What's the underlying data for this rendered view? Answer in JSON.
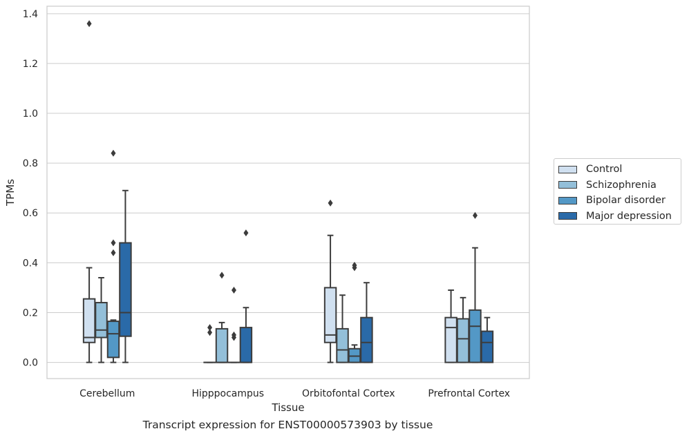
{
  "caption": "Transcript expression for ENST00000573903 by tissue",
  "chart_data": {
    "type": "box",
    "xlabel": "Tissue",
    "ylabel": "TPMs",
    "ylim": [
      -0.065,
      1.43
    ],
    "yticks": [
      0.0,
      0.2,
      0.4,
      0.6,
      0.8,
      1.0,
      1.2,
      1.4
    ],
    "ytick_labels": [
      "0.0",
      "0.2",
      "0.4",
      "0.6",
      "0.8",
      "1.0",
      "1.2",
      "1.4"
    ],
    "grid": "horizontal",
    "legend_position": "outside-right",
    "categories": [
      "Cerebellum",
      "Hipppocampus",
      "Orbitofontal Cortex",
      "Prefrontal Cortex"
    ],
    "series": [
      {
        "name": "Control",
        "color": "#d0e0f0",
        "boxes": [
          {
            "whislo": 0.0,
            "q1": 0.08,
            "med": 0.1,
            "q3": 0.255,
            "whishi": 0.38,
            "fliers": [
              1.36
            ]
          },
          {
            "whislo": 0.0,
            "q1": 0.0,
            "med": 0.0,
            "q3": 0.0,
            "whishi": 0.0,
            "fliers": [
              0.12,
              0.14
            ]
          },
          {
            "whislo": 0.0,
            "q1": 0.08,
            "med": 0.11,
            "q3": 0.3,
            "whishi": 0.51,
            "fliers": [
              0.64
            ]
          },
          {
            "whislo": 0.0,
            "q1": 0.0,
            "med": 0.14,
            "q3": 0.18,
            "whishi": 0.29,
            "fliers": []
          }
        ]
      },
      {
        "name": "Schizophrenia",
        "color": "#93bfd9",
        "boxes": [
          {
            "whislo": 0.0,
            "q1": 0.1,
            "med": 0.13,
            "q3": 0.24,
            "whishi": 0.34,
            "fliers": []
          },
          {
            "whislo": 0.0,
            "q1": 0.0,
            "med": 0.0,
            "q3": 0.135,
            "whishi": 0.16,
            "fliers": [
              0.35
            ]
          },
          {
            "whislo": 0.0,
            "q1": 0.0,
            "med": 0.05,
            "q3": 0.135,
            "whishi": 0.27,
            "fliers": []
          },
          {
            "whislo": 0.0,
            "q1": 0.0,
            "med": 0.095,
            "q3": 0.175,
            "whishi": 0.26,
            "fliers": []
          }
        ]
      },
      {
        "name": "Bipolar disorder",
        "color": "#5398c6",
        "boxes": [
          {
            "whislo": 0.0,
            "q1": 0.02,
            "med": 0.115,
            "q3": 0.165,
            "whishi": 0.17,
            "fliers": [
              0.44,
              0.48,
              0.84
            ]
          },
          {
            "whislo": 0.0,
            "q1": 0.0,
            "med": 0.0,
            "q3": 0.0,
            "whishi": 0.0,
            "fliers": [
              0.1,
              0.11,
              0.29
            ]
          },
          {
            "whislo": 0.0,
            "q1": 0.0,
            "med": 0.025,
            "q3": 0.055,
            "whishi": 0.07,
            "fliers": [
              0.38,
              0.39
            ]
          },
          {
            "whislo": 0.0,
            "q1": 0.0,
            "med": 0.145,
            "q3": 0.21,
            "whishi": 0.46,
            "fliers": [
              0.59
            ]
          }
        ]
      },
      {
        "name": "Major depression",
        "color": "#2a6aa8",
        "boxes": [
          {
            "whislo": 0.0,
            "q1": 0.105,
            "med": 0.2,
            "q3": 0.48,
            "whishi": 0.69,
            "fliers": []
          },
          {
            "whislo": 0.0,
            "q1": 0.0,
            "med": 0.0,
            "q3": 0.14,
            "whishi": 0.22,
            "fliers": [
              0.52
            ]
          },
          {
            "whislo": 0.0,
            "q1": 0.0,
            "med": 0.08,
            "q3": 0.18,
            "whishi": 0.32,
            "fliers": []
          },
          {
            "whislo": 0.0,
            "q1": 0.0,
            "med": 0.08,
            "q3": 0.125,
            "whishi": 0.18,
            "fliers": []
          }
        ]
      }
    ]
  },
  "legend": {
    "items": [
      {
        "label": "Control",
        "color": "#d0e0f0"
      },
      {
        "label": "Schizophrenia",
        "color": "#93bfd9"
      },
      {
        "label": "Bipolar disorder",
        "color": "#5398c6"
      },
      {
        "label": "Major depression",
        "color": "#2a6aa8"
      }
    ]
  }
}
